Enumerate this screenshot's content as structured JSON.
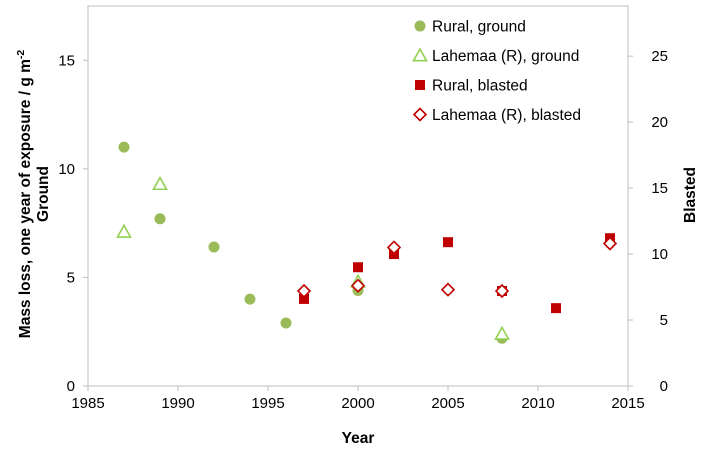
{
  "chart_data": {
    "type": "scatter",
    "xlabel": "Year",
    "ylabel_left_line1": "Mass loss, one year of exposure / g m",
    "ylabel_left_sup": "-2",
    "ylabel_left_line2": "Ground",
    "ylabel_right": "Blasted",
    "xlim": [
      1985,
      2015
    ],
    "xticks": [
      1985,
      1990,
      1995,
      2000,
      2005,
      2010,
      2015
    ],
    "ylim_left": [
      0,
      17.5
    ],
    "yticks_left": [
      0,
      5,
      10,
      15
    ],
    "ylim_right": [
      0,
      28.8
    ],
    "yticks_right": [
      0,
      5,
      10,
      15,
      20,
      25
    ],
    "grid": false,
    "legend_position": "top-right",
    "series": [
      {
        "name": "Rural, ground",
        "axis": "left",
        "marker": "circle",
        "color": "#9bbb59",
        "points": [
          [
            1987,
            11.0
          ],
          [
            1989,
            7.7
          ],
          [
            1992,
            6.4
          ],
          [
            1994,
            4.0
          ],
          [
            1996,
            2.9
          ],
          [
            2000,
            4.4
          ],
          [
            2008,
            2.2
          ]
        ]
      },
      {
        "name": "Lahemaa (R), ground",
        "axis": "left",
        "marker": "triangle-open",
        "color": "#92d050",
        "points": [
          [
            1987,
            7.1
          ],
          [
            1989,
            9.3
          ],
          [
            2000,
            4.8
          ],
          [
            2008,
            2.4
          ]
        ]
      },
      {
        "name": "Rural, blasted",
        "axis": "right",
        "marker": "square",
        "color": "#c00000",
        "points": [
          [
            1997,
            6.6
          ],
          [
            2000,
            9.0
          ],
          [
            2002,
            10.0
          ],
          [
            2005,
            10.9
          ],
          [
            2008,
            7.2
          ],
          [
            2011,
            5.9
          ],
          [
            2014,
            11.2
          ]
        ]
      },
      {
        "name": "Lahemaa (R), blasted",
        "axis": "right",
        "marker": "diamond-open",
        "color": "#c00000",
        "points": [
          [
            1997,
            7.2
          ],
          [
            2000,
            7.6
          ],
          [
            2002,
            10.5
          ],
          [
            2005,
            7.3
          ],
          [
            2008,
            7.2
          ],
          [
            2014,
            10.8
          ]
        ]
      }
    ]
  }
}
